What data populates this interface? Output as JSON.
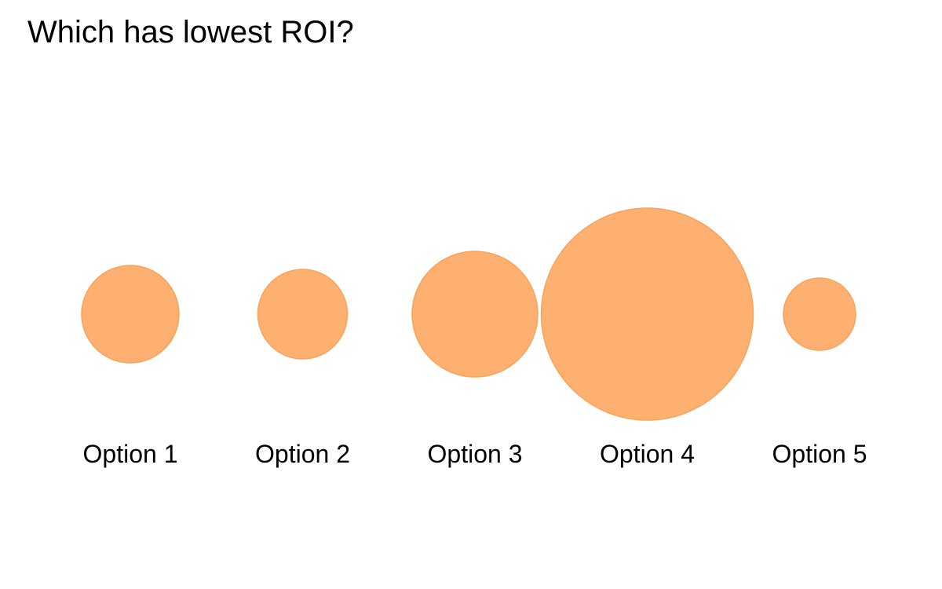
{
  "question": "Which has lowest ROI?",
  "colors": {
    "bubble_fill": "#fdb06f",
    "bubble_stroke": "#f6a45e"
  },
  "chart_data": {
    "type": "bubble",
    "title": "Which has lowest ROI?",
    "categories": [
      "Option 1",
      "Option 2",
      "Option 3",
      "Option 4",
      "Option 5"
    ],
    "values": [
      62,
      57,
      80,
      135,
      46
    ],
    "value_meaning": "relative bubble radius as drawn (no numeric labels shown)"
  }
}
